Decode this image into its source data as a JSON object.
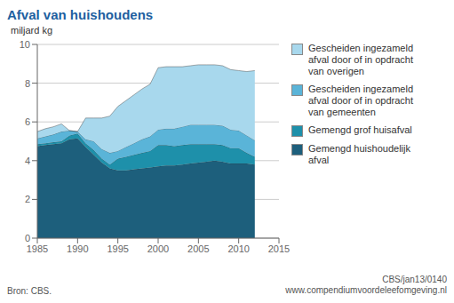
{
  "chart_data": {
    "type": "area",
    "title": "Afval van huishoudens",
    "ylabel": "miljard kg",
    "annotations": [
      "Bron: CBS.",
      "CBS/jan13/0140",
      "www.compendiumvoordeleefomgeving.nl"
    ],
    "stacked": true,
    "grid": true,
    "legend": "right",
    "xlim": [
      1985,
      2015
    ],
    "ylim": [
      0,
      10
    ],
    "xticks": [
      1985,
      1990,
      1995,
      2000,
      2005,
      2010,
      2015
    ],
    "yticks": [
      0,
      2,
      4,
      6,
      8,
      10
    ],
    "x": [
      1985,
      1986,
      1987,
      1988,
      1989,
      1990,
      1991,
      1992,
      1993,
      1994,
      1995,
      1996,
      1997,
      1998,
      1999,
      2000,
      2001,
      2002,
      2003,
      2004,
      2005,
      2006,
      2007,
      2008,
      2009,
      2010,
      2011,
      2012
    ],
    "series": [
      {
        "name": "Gemengd huishoudelijk\nafval",
        "color": "#1d5f7c",
        "values": [
          4.75,
          4.8,
          4.85,
          4.9,
          5.1,
          5.15,
          4.7,
          4.3,
          3.9,
          3.6,
          3.5,
          3.5,
          3.55,
          3.6,
          3.65,
          3.7,
          3.75,
          3.75,
          3.8,
          3.85,
          3.9,
          3.95,
          4.0,
          3.95,
          3.85,
          3.85,
          3.85,
          3.8
        ]
      },
      {
        "name": "Gemengd grof huisafval",
        "color": "#1e90aa",
        "values": [
          0.1,
          0.1,
          0.1,
          0.1,
          0.2,
          0.25,
          0.2,
          0.25,
          0.2,
          0.2,
          0.6,
          0.7,
          0.75,
          0.8,
          0.85,
          1.1,
          1.05,
          1.0,
          1.0,
          1.0,
          0.95,
          0.9,
          0.85,
          0.85,
          0.8,
          0.8,
          0.55,
          0.4
        ]
      },
      {
        "name": "Gescheiden ingezameld\nafval door of in opdracht\nvan gemeenten",
        "color": "#5ab4d8",
        "values": [
          0.3,
          0.35,
          0.4,
          0.5,
          0.25,
          0.1,
          0.2,
          0.45,
          0.5,
          0.6,
          0.4,
          0.5,
          0.6,
          0.7,
          0.75,
          0.8,
          0.85,
          0.9,
          0.95,
          1.0,
          1.0,
          1.0,
          1.0,
          1.0,
          0.95,
          0.9,
          0.9,
          0.85
        ]
      },
      {
        "name": "Gescheiden ingezameld\nafval door of in opdracht\nvan overigen",
        "color": "#a8d8ed",
        "values": [
          0.35,
          0.4,
          0.4,
          0.4,
          0.0,
          0.0,
          1.1,
          1.2,
          1.6,
          1.9,
          2.3,
          2.4,
          2.5,
          2.6,
          2.7,
          3.2,
          3.2,
          3.2,
          3.1,
          3.05,
          3.1,
          3.1,
          3.1,
          3.1,
          3.1,
          3.1,
          3.3,
          3.6
        ]
      }
    ]
  }
}
